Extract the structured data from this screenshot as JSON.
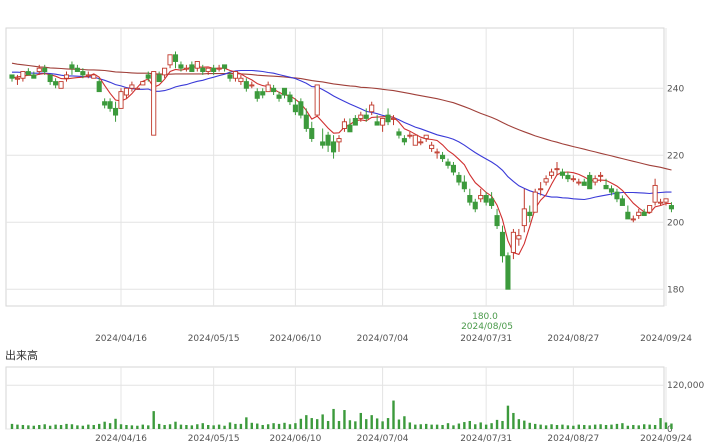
{
  "chart_data": {
    "type": "candlestick",
    "price_panel": {
      "ylim": [
        175,
        258
      ],
      "y_ticks": [
        "240",
        "220",
        "200",
        "180"
      ],
      "x_ticks": [
        "2024/04/16",
        "2024/05/15",
        "2024/06/10",
        "2024/07/04",
        "2024/07/31",
        "2024/08/27",
        "2024/09/24"
      ],
      "annotation": {
        "value": "180.0",
        "date": "2024/08/05"
      },
      "colors": {
        "up": "#c0392b",
        "down": "#3c9a3c",
        "ma_short": "#d03030",
        "ma_mid": "#3a3ad8",
        "ma_long": "#a0403a"
      },
      "candles": [
        [
          244,
          244,
          242,
          243
        ],
        [
          243,
          244,
          241,
          243
        ],
        [
          243,
          245,
          242,
          245
        ],
        [
          245,
          246,
          244,
          244
        ],
        [
          244,
          245,
          243,
          243
        ],
        [
          245,
          247,
          244,
          246
        ],
        [
          246,
          247,
          244,
          245
        ],
        [
          244,
          244,
          241,
          242
        ],
        [
          242,
          243,
          240,
          241
        ],
        [
          240,
          242,
          240,
          242
        ],
        [
          243,
          245,
          242,
          244
        ],
        [
          247,
          248,
          244,
          246
        ],
        [
          246,
          247,
          245,
          245
        ],
        [
          245,
          246,
          243,
          244
        ],
        [
          244,
          245,
          243,
          244
        ],
        [
          243,
          244,
          243,
          244
        ],
        [
          242,
          243,
          239,
          239
        ],
        [
          236,
          237,
          234,
          235
        ],
        [
          236,
          237,
          233,
          234
        ],
        [
          234,
          236,
          230,
          232
        ],
        [
          234,
          240,
          234,
          239
        ],
        [
          238,
          240,
          237,
          240
        ],
        [
          240,
          242,
          239,
          241
        ],
        [
          240,
          240,
          240,
          240
        ],
        [
          241,
          242,
          241,
          242
        ],
        [
          244,
          245,
          242,
          243
        ],
        [
          226,
          245,
          226,
          245
        ],
        [
          244,
          245,
          242,
          242
        ],
        [
          244,
          246,
          243,
          246
        ],
        [
          247,
          250,
          246,
          250
        ],
        [
          250,
          251,
          246,
          248
        ],
        [
          247,
          248,
          245,
          246
        ],
        [
          246,
          247,
          245,
          246
        ],
        [
          247,
          248,
          245,
          245
        ],
        [
          246,
          248,
          245,
          248
        ],
        [
          246,
          247,
          244,
          245
        ],
        [
          245,
          246,
          244,
          246
        ],
        [
          246,
          247,
          244,
          245
        ],
        [
          246,
          247,
          245,
          246
        ],
        [
          247,
          247,
          245,
          246
        ],
        [
          244,
          245,
          242,
          243
        ],
        [
          243,
          245,
          242,
          245
        ],
        [
          242,
          244,
          241,
          243
        ],
        [
          242,
          243,
          239,
          240
        ],
        [
          241,
          242,
          240,
          241
        ],
        [
          239,
          240,
          236,
          237
        ],
        [
          239,
          240,
          237,
          238
        ],
        [
          239,
          242,
          239,
          241
        ],
        [
          240,
          241,
          238,
          239
        ],
        [
          238,
          239,
          236,
          237
        ],
        [
          240,
          240,
          237,
          238
        ],
        [
          238,
          239,
          235,
          236
        ],
        [
          235,
          237,
          232,
          233
        ],
        [
          236,
          237,
          231,
          232
        ],
        [
          232,
          234,
          227,
          228
        ],
        [
          228,
          230,
          224,
          225
        ],
        [
          232,
          241,
          232,
          241
        ],
        [
          224,
          228,
          222,
          223
        ],
        [
          226,
          227,
          221,
          223
        ],
        [
          224,
          226,
          219,
          221
        ],
        [
          224,
          226,
          221,
          225
        ],
        [
          228,
          231,
          227,
          230
        ],
        [
          229,
          231,
          227,
          227
        ],
        [
          231,
          232,
          229,
          229
        ],
        [
          231,
          233,
          230,
          232
        ],
        [
          232,
          234,
          230,
          231
        ],
        [
          233,
          236,
          232,
          235
        ],
        [
          230,
          232,
          229,
          229
        ],
        [
          229,
          231,
          227,
          231
        ],
        [
          232,
          234,
          229,
          230
        ],
        [
          231,
          232,
          229,
          231
        ],
        [
          227,
          228,
          225,
          226
        ],
        [
          225,
          226,
          223,
          224
        ],
        [
          226,
          227,
          225,
          226
        ],
        [
          223,
          226,
          223,
          226
        ],
        [
          224,
          225,
          223,
          224
        ],
        [
          225,
          226,
          224,
          226
        ],
        [
          222,
          224,
          221,
          223
        ],
        [
          221,
          222,
          219,
          221
        ],
        [
          220,
          221,
          218,
          219
        ],
        [
          218,
          219,
          216,
          217
        ],
        [
          217,
          218,
          214,
          215
        ],
        [
          214,
          215,
          211,
          212
        ],
        [
          212,
          214,
          209,
          210
        ],
        [
          208,
          210,
          205,
          206
        ],
        [
          206,
          207,
          203,
          204
        ],
        [
          207,
          210,
          206,
          208
        ],
        [
          208,
          209,
          205,
          206
        ],
        [
          207,
          209,
          204,
          205
        ],
        [
          202,
          204,
          198,
          199
        ],
        [
          197,
          199,
          188,
          190
        ],
        [
          190,
          191,
          180,
          180
        ],
        [
          191,
          198,
          189,
          197
        ],
        [
          195,
          198,
          193,
          196
        ],
        [
          199,
          210,
          197,
          204
        ],
        [
          203,
          205,
          200,
          202
        ],
        [
          203,
          210,
          203,
          209
        ],
        [
          210,
          212,
          208,
          210
        ],
        [
          212,
          214,
          211,
          213
        ],
        [
          214,
          216,
          213,
          215
        ],
        [
          216,
          218,
          214,
          216
        ],
        [
          215,
          216,
          213,
          214
        ],
        [
          214,
          215,
          212,
          213
        ],
        [
          213,
          214,
          212,
          213
        ],
        [
          212,
          213,
          211,
          212
        ],
        [
          212,
          213,
          211,
          211
        ],
        [
          214,
          215,
          210,
          210
        ],
        [
          212,
          214,
          211,
          213
        ],
        [
          214,
          215,
          212,
          214
        ],
        [
          211,
          213,
          210,
          210
        ],
        [
          210,
          211,
          208,
          209
        ],
        [
          209,
          210,
          206,
          207
        ],
        [
          207,
          208,
          205,
          205
        ],
        [
          203,
          205,
          201,
          201
        ],
        [
          201,
          202,
          200,
          201
        ],
        [
          202,
          204,
          201,
          203
        ],
        [
          203,
          204,
          202,
          202
        ],
        [
          203,
          205,
          203,
          205
        ],
        [
          206,
          213,
          205,
          211
        ],
        [
          206,
          207,
          205,
          206
        ],
        [
          206,
          207,
          205,
          207
        ],
        [
          205,
          206,
          203,
          204
        ]
      ],
      "ma_short": [
        243.1,
        243.4,
        243.6,
        243.9,
        243.8,
        244.2,
        244.4,
        244.1,
        243.6,
        242.9,
        242.8,
        243,
        243.2,
        243.3,
        243.6,
        244.3,
        243.3,
        240.8,
        238.5,
        236.5,
        236.2,
        236.9,
        238.4,
        240.3,
        242.1,
        242.8,
        240.3,
        241,
        242.7,
        245,
        245.6,
        245.4,
        245.8,
        246.4,
        246.4,
        246.3,
        246.4,
        245.9,
        246,
        246,
        245.3,
        244.9,
        244.3,
        243.3,
        242.5,
        241.4,
        240.8,
        240.5,
        239.7,
        238.8,
        238,
        237.8,
        236.7,
        235.4,
        233.4,
        230.8,
        231.7,
        229.9,
        228.1,
        226.6,
        226.7,
        228.4,
        229.2,
        230.3,
        230.6,
        230.3,
        231.3,
        231.4,
        231.5,
        231.6,
        231.4,
        229.9,
        227.9,
        227.2,
        226.3,
        225.4,
        224.9,
        224.7,
        224.4,
        223.1,
        221.4,
        220.3,
        218.8,
        217.2,
        214.2,
        211.8,
        210.4,
        208.9,
        207.8,
        205.1,
        200.8,
        194.5,
        190.9,
        190.4,
        193.6,
        198.8,
        204.1,
        206.6,
        208.2,
        211.4,
        214.2,
        214.9,
        215,
        214.8,
        214.3,
        213.5,
        212.6,
        212.5,
        212.6,
        212.5,
        211.7,
        210.8,
        209.5,
        207.6,
        205.7,
        204.3,
        203.1,
        202.7,
        204.6,
        205,
        205.6,
        205.6
      ],
      "ma_mid": [
        244.8,
        244.8,
        244.7,
        244.6,
        244.5,
        244.5,
        244.5,
        244.4,
        244.2,
        243.9,
        243.7,
        243.7,
        243.6,
        243.5,
        243.4,
        243.3,
        242.9,
        242.4,
        241.8,
        241.1,
        240.7,
        240.2,
        239.9,
        239.7,
        239.7,
        239.8,
        239.1,
        239.1,
        239.3,
        239.8,
        240.4,
        240.8,
        241.1,
        241.6,
        242.1,
        242.4,
        242.9,
        243.3,
        243.8,
        244.2,
        244.8,
        245.2,
        245.3,
        245.3,
        245.3,
        245.2,
        245,
        244.7,
        244.5,
        244.1,
        243.7,
        243.3,
        242.9,
        242.2,
        241.5,
        240.5,
        240.4,
        239.6,
        238.7,
        237.7,
        236.9,
        236.1,
        235.3,
        234.6,
        233.9,
        233.1,
        232.8,
        232.4,
        231.9,
        231.6,
        231.3,
        230.6,
        229.8,
        229.1,
        228.4,
        227.9,
        227.3,
        226.7,
        226.1,
        225.7,
        225.3,
        224.8,
        224,
        223,
        221.9,
        220.8,
        219.8,
        218.9,
        218,
        216.9,
        215.5,
        213.6,
        212.2,
        210.9,
        210.1,
        209.4,
        208.9,
        208.4,
        207.8,
        207.5,
        207.5,
        207.3,
        207.2,
        207,
        206.9,
        206.8,
        207.1,
        207.5,
        207.8,
        208.1,
        208.4,
        208.7,
        208.9,
        208.9,
        208.9,
        208.8,
        208.7,
        208.6,
        208.8,
        208.9,
        209,
        209
      ],
      "ma_long": [
        247.5,
        247.2,
        247,
        246.8,
        246.6,
        246.4,
        246.3,
        246.1,
        246,
        245.9,
        245.8,
        245.7,
        245.7,
        245.6,
        245.5,
        245.5,
        245.4,
        245.3,
        245.1,
        244.9,
        244.8,
        244.7,
        244.6,
        244.5,
        244.5,
        244.5,
        244.3,
        244.3,
        244.2,
        244.2,
        244.3,
        244.3,
        244.3,
        244.3,
        244.3,
        244.3,
        244.4,
        244.4,
        244.4,
        244.4,
        244.4,
        244.4,
        244.3,
        244.2,
        244.1,
        243.9,
        243.8,
        243.7,
        243.6,
        243.5,
        243.4,
        243.2,
        243.1,
        242.9,
        242.6,
        242.3,
        242.1,
        241.9,
        241.6,
        241.3,
        241.1,
        240.9,
        240.7,
        240.6,
        240.3,
        240.2,
        240.1,
        239.9,
        239.7,
        239.5,
        239.3,
        239,
        238.7,
        238.4,
        238.1,
        237.8,
        237.5,
        237.2,
        236.9,
        236.5,
        236.1,
        235.7,
        235.1,
        234.5,
        233.9,
        233.2,
        232.5,
        231.9,
        231.3,
        230.6,
        229.8,
        229,
        228.3,
        227.6,
        227,
        226.4,
        225.8,
        225.3,
        224.8,
        224.3,
        223.9,
        223.4,
        223,
        222.6,
        222.2,
        221.8,
        221.4,
        221,
        220.6,
        220.2,
        219.8,
        219.4,
        219,
        218.6,
        218.2,
        217.8,
        217.4,
        217,
        216.7,
        216.4,
        216,
        215.6
      ]
    },
    "volume_panel": {
      "title": "出来高",
      "ylim": [
        0,
        170000
      ],
      "y_ticks": [
        "120,000",
        "0"
      ],
      "values": [
        14000,
        12000,
        11000,
        10000,
        9000,
        11000,
        13000,
        9000,
        12000,
        11000,
        14000,
        13000,
        10000,
        9000,
        12000,
        11000,
        14000,
        20000,
        16000,
        28000,
        13000,
        11000,
        10000,
        9000,
        12000,
        10000,
        49000,
        14000,
        11000,
        13000,
        20000,
        12000,
        11000,
        10000,
        13000,
        16000,
        11000,
        10000,
        12000,
        9000,
        18000,
        14000,
        14000,
        32000,
        17000,
        15000,
        11000,
        13000,
        16000,
        14000,
        17000,
        13000,
        16000,
        28000,
        38000,
        30000,
        27000,
        40000,
        22000,
        55000,
        22000,
        52000,
        24000,
        21000,
        44000,
        27000,
        38000,
        29000,
        21000,
        30000,
        78000,
        26000,
        35000,
        18000,
        12000,
        13000,
        14000,
        12000,
        12000,
        11000,
        16000,
        10000,
        15000,
        19000,
        22000,
        13000,
        18000,
        12000,
        16000,
        25000,
        22000,
        64000,
        44000,
        27000,
        23000,
        17000,
        14000,
        12000,
        10000,
        13000,
        11000,
        12000,
        10000,
        9000,
        12000,
        11000,
        10000,
        12000,
        13000,
        11000,
        12000,
        14000,
        16000,
        9000,
        11000,
        10000,
        13000,
        12000,
        11000,
        30000,
        18000,
        15000
      ]
    }
  }
}
